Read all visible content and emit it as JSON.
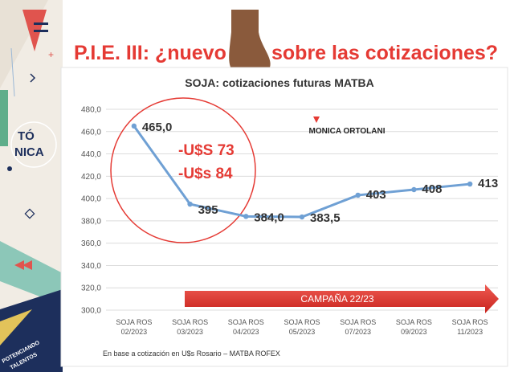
{
  "slide": {
    "title_left": "P.I.E. III:  ¿nuevo",
    "title_right": "sobre las cotizaciones?",
    "logo_top": "TÓ",
    "logo_bottom": "NICA",
    "badge_text_1": "POTENCIANDO",
    "badge_text_2": "TALENTOS",
    "colors": {
      "accent": "#e53a34",
      "navy": "#1d2f5c",
      "line": "#6fa0d4"
    }
  },
  "chart_data": {
    "type": "line",
    "title": "SOJA: cotizaciones futuras MATBA",
    "categories": [
      [
        "SOJA ROS",
        "02/2023"
      ],
      [
        "SOJA ROS",
        "03/2023"
      ],
      [
        "SOJA ROS",
        "04/2023"
      ],
      [
        "SOJA ROS",
        "05/2023"
      ],
      [
        "SOJA ROS",
        "07/2023"
      ],
      [
        "SOJA ROS",
        "09/2023"
      ],
      [
        "SOJA ROS",
        "11/2023"
      ]
    ],
    "values": [
      465.0,
      395.0,
      384.0,
      383.5,
      403.0,
      408.0,
      413.0
    ],
    "data_labels": [
      "465,0",
      "395",
      "384,0",
      "383,5",
      "403",
      "408",
      "413"
    ],
    "yticks": [
      "300,0",
      "320,0",
      "340,0",
      "360,0",
      "380,0",
      "400,0",
      "420,0",
      "440,0",
      "460,0",
      "480,0"
    ],
    "ylim": [
      300,
      480
    ],
    "grid": true,
    "annotations": [
      "-U$S 73",
      "-U$s 84"
    ],
    "author": "MONICA ORTOLANI",
    "campaign_label": "CAMPAÑA 22/23",
    "footnote": "En base a cotización en U$s Rosario  – MATBA ROFEX",
    "xlabel": "",
    "ylabel": ""
  }
}
